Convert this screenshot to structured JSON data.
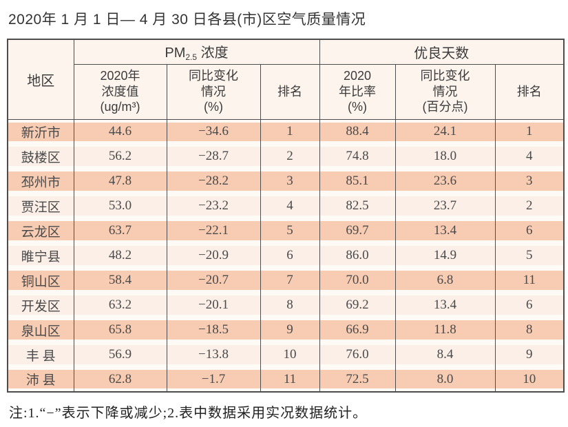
{
  "title": "2020年 1 月 1 日— 4 月 30 日各县(市)区空气质量情况",
  "table": {
    "header": {
      "region": "地区",
      "pm25_group": {
        "prefix": "PM",
        "sub": "2.5",
        "suffix": " 浓度"
      },
      "good_days_group": "优良天数",
      "sub_headers": {
        "pm25_value": "2020年\n浓度值\n(ug/m³)",
        "pm25_change": "同比变化\n情况\n(%)",
        "pm25_rank": "排名",
        "good_ratio": "2020\n年比率\n(%)",
        "good_change": "同比变化\n情况\n(百分点)",
        "good_rank": "排名"
      }
    },
    "rows": [
      [
        "新沂市",
        "44.6",
        "−34.6",
        "1",
        "88.4",
        "24.1",
        "1"
      ],
      [
        "鼓楼区",
        "56.2",
        "−28.7",
        "2",
        "74.8",
        "18.0",
        "4"
      ],
      [
        "邳州市",
        "47.8",
        "−28.2",
        "3",
        "85.1",
        "23.6",
        "3"
      ],
      [
        "贾汪区",
        "53.0",
        "−23.2",
        "4",
        "82.5",
        "23.7",
        "2"
      ],
      [
        "云龙区",
        "63.7",
        "−22.1",
        "5",
        "69.7",
        "13.4",
        "6"
      ],
      [
        "睢宁县",
        "48.2",
        "−20.9",
        "6",
        "86.0",
        "14.9",
        "5"
      ],
      [
        "铜山区",
        "58.4",
        "−20.7",
        "7",
        "70.0",
        "6.8",
        "11"
      ],
      [
        "开发区",
        "63.2",
        "−20.1",
        "8",
        "69.2",
        "13.4",
        "6"
      ],
      [
        "泉山区",
        "65.8",
        "−18.5",
        "9",
        "66.9",
        "11.8",
        "8"
      ],
      [
        "丰 县",
        "56.9",
        "−13.8",
        "10",
        "76.0",
        "8.4",
        "9"
      ],
      [
        "沛 县",
        "62.8",
        "−1.7",
        "11",
        "72.5",
        "8.0",
        "10"
      ]
    ]
  },
  "footnote": "注:1.“−”表示下降或减少;2.表中数据采用实况数据统计。",
  "colors": {
    "row_odd": "#f8ccb2",
    "row_even": "#fbefe7",
    "row_gap": "#fefaf6",
    "header_bg": "#fdf4ee",
    "border": "#4c4c4c",
    "text": "#4a4a4a"
  }
}
